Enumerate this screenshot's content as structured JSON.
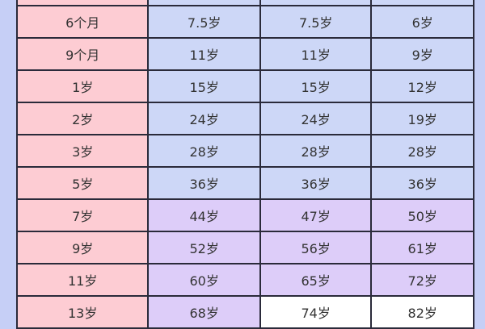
{
  "colors": {
    "age_column": "#fdccd3",
    "early_rows": "#cdd7f7",
    "later_rows": "#ddcdf9",
    "last_cells": "#ffffff",
    "background": "#c6cff6"
  },
  "rows": [
    {
      "age": "",
      "v": [
        "",
        "",
        ""
      ],
      "tone": "blue"
    },
    {
      "age": "6个月",
      "v": [
        "7.5岁",
        "7.5岁",
        "6岁"
      ],
      "tone": "blue"
    },
    {
      "age": "9个月",
      "v": [
        "11岁",
        "11岁",
        "9岁"
      ],
      "tone": "blue"
    },
    {
      "age": "1岁",
      "v": [
        "15岁",
        "15岁",
        "12岁"
      ],
      "tone": "blue"
    },
    {
      "age": "2岁",
      "v": [
        "24岁",
        "24岁",
        "19岁"
      ],
      "tone": "blue"
    },
    {
      "age": "3岁",
      "v": [
        "28岁",
        "28岁",
        "28岁"
      ],
      "tone": "blue"
    },
    {
      "age": "5岁",
      "v": [
        "36岁",
        "36岁",
        "36岁"
      ],
      "tone": "blue"
    },
    {
      "age": "7岁",
      "v": [
        "44岁",
        "47岁",
        "50岁"
      ],
      "tone": "purple"
    },
    {
      "age": "9岁",
      "v": [
        "52岁",
        "56岁",
        "61岁"
      ],
      "tone": "purple"
    },
    {
      "age": "11岁",
      "v": [
        "60岁",
        "65岁",
        "72岁"
      ],
      "tone": "purple"
    },
    {
      "age": "13岁",
      "v": [
        "68岁",
        "74岁",
        "82岁"
      ],
      "tone": "mixed"
    }
  ]
}
